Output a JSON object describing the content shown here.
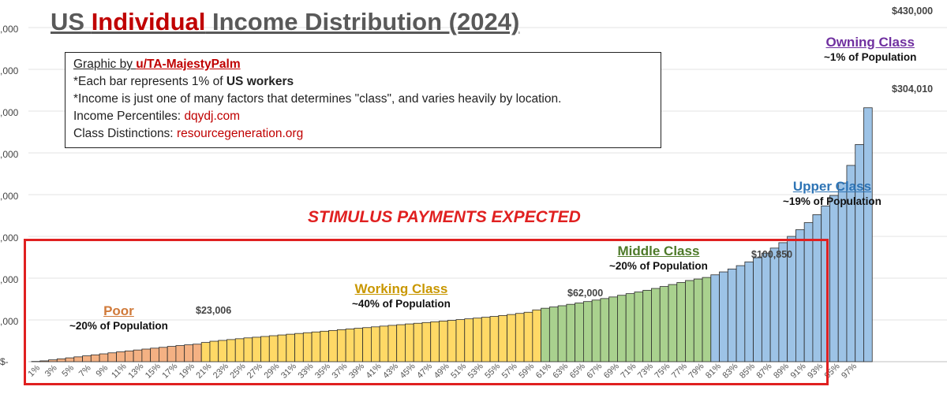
{
  "title": {
    "pre": "US ",
    "highlight": "Individual",
    "post": " Income Distribution (2024)"
  },
  "info": {
    "line1_pre": "Graphic by ",
    "line1_author": "u/TA-MajestyPalm",
    "line2_pre": "*Each bar represents 1% of ",
    "line2_bold": "US workers",
    "line3": "*Income is just one of many factors that determines \"class\", and varies heavily by location.",
    "line4_pre": "Income Percentiles: ",
    "line4_link": "dqydj.com",
    "line5_pre": "Class Distinctions: ",
    "line5_link": "resourcegeneration.org"
  },
  "stimulus_label": "STIMULUS PAYMENTS EXPECTED",
  "classes": {
    "poor": {
      "name": "Poor",
      "pop": "~20% of Population",
      "color": "#b8733a"
    },
    "working": {
      "name": "Working Class",
      "pop": "~40% of Population",
      "color": "#c08a00"
    },
    "middle": {
      "name": "Middle Class",
      "pop": "~20% of Population",
      "color": "#4e7a2a"
    },
    "upper": {
      "name": "Upper Class",
      "pop": "~19% of Population",
      "color": "#2e74b5"
    },
    "owning": {
      "name": "Owning Class",
      "pop": "~1% of Population",
      "color": "#7030a0"
    }
  },
  "annotations": {
    "p20": "$23,006",
    "p60": "$62,000",
    "p80": "$100,850",
    "p98": "$304,010",
    "p99": "$430,000"
  },
  "y_tick_labels": [
    ",000",
    ",000",
    ",000",
    ",000",
    ",000",
    ",000",
    ",000",
    ",000",
    "$-"
  ],
  "chart_data": {
    "type": "bar",
    "title": "US Individual Income Distribution (2024)",
    "xlabel": "",
    "ylabel": "",
    "ylim": [
      0,
      400000
    ],
    "x_tick_labels": [
      "1%",
      "3%",
      "5%",
      "7%",
      "9%",
      "11%",
      "13%",
      "15%",
      "17%",
      "19%",
      "21%",
      "23%",
      "25%",
      "27%",
      "29%",
      "31%",
      "33%",
      "35%",
      "37%",
      "39%",
      "41%",
      "43%",
      "45%",
      "47%",
      "49%",
      "51%",
      "53%",
      "55%",
      "57%",
      "59%",
      "61%",
      "63%",
      "65%",
      "67%",
      "69%",
      "71%",
      "73%",
      "75%",
      "77%",
      "79%",
      "81%",
      "83%",
      "85%",
      "87%",
      "89%",
      "91%",
      "93%",
      "95%",
      "97%"
    ],
    "segment_colors": {
      "poor": "#f4b183",
      "working": "#ffd966",
      "middle": "#a9d18e",
      "upper": "#9dc3e6",
      "owning": "#9dc3e6"
    },
    "series": [
      {
        "values": [
          300,
          1000,
          2200,
          3400,
          4600,
          5800,
          7000,
          8200,
          9400,
          10600,
          11800,
          12900,
          14000,
          15100,
          16200,
          17200,
          18300,
          19300,
          20200,
          21000,
          23006,
          24500,
          25500,
          26500,
          27500,
          28500,
          29300,
          30200,
          31100,
          32000,
          32900,
          33800,
          34700,
          35600,
          36500,
          37400,
          38300,
          39200,
          40000,
          40800,
          41700,
          42600,
          43500,
          44300,
          45200,
          46000,
          46900,
          47800,
          48700,
          49500,
          50400,
          51300,
          52200,
          53200,
          54200,
          55300,
          56500,
          57800,
          59200,
          62000,
          64000,
          65500,
          67000,
          68700,
          70300,
          72000,
          73800,
          75600,
          77500,
          79500,
          81500,
          83500,
          85500,
          87700,
          90000,
          92400,
          94800,
          97200,
          99000,
          100850,
          104000,
          107500,
          111000,
          115000,
          119500,
          124500,
          130000,
          136000,
          142500,
          150000,
          158000,
          166500,
          176000,
          186500,
          199000,
          214000,
          235000,
          260000,
          304010
        ]
      }
    ]
  }
}
